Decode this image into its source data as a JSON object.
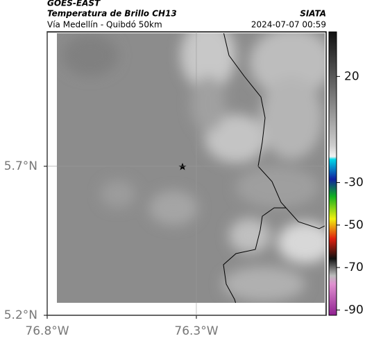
{
  "header": {
    "satellite": "GOES-EAST",
    "product": "Temperatura de Brillo CH13",
    "region": "Vía Medellín - Quibdó 50km",
    "source": "SIATA",
    "datetime": "2024-07-07 00:59"
  },
  "map": {
    "xlim": [
      -76.8,
      -75.865
    ],
    "ylim": [
      5.2,
      6.151
    ],
    "xticks": [
      {
        "value": -76.8,
        "label": "76.8°W"
      },
      {
        "value": -76.3,
        "label": "76.3°W"
      }
    ],
    "yticks": [
      {
        "value": 5.2,
        "label": "5.2°N"
      },
      {
        "value": 5.7,
        "label": "5.7°N"
      }
    ],
    "grid": true
  },
  "colorbar": {
    "clim": [
      -92.5,
      41
    ],
    "ticks": [
      20,
      -30,
      -50,
      -70,
      -90
    ]
  }
}
